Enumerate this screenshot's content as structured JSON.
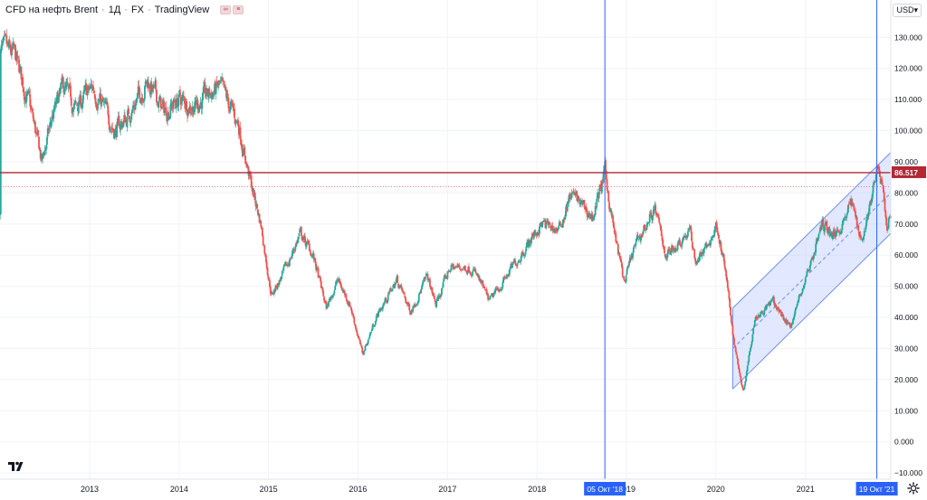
{
  "header": {
    "symbol": "CFD на нефть Brent",
    "interval": "1Д",
    "exchange": "FX",
    "source": "TradingView",
    "separator": "·"
  },
  "currency": "USD",
  "colors": {
    "up": "#26a69a",
    "down": "#ef5350",
    "level_line": "#b22833",
    "price_dotted": "#ef5350",
    "vline": "#2962ff",
    "channel_fill": "#c9d6ff",
    "channel_line": "#6e8ff0",
    "label_bg": "#2962ff"
  },
  "chart_data": {
    "type": "candlestick",
    "symbol": "CFD на нефть Brent",
    "interval": "1Д",
    "x_range": [
      "2012-01-01",
      "2021-12-15"
    ],
    "ylim": [
      -12,
      142
    ],
    "y_ticks": [
      130,
      120,
      110,
      100,
      90,
      80,
      70,
      60,
      50,
      40,
      30,
      20,
      10,
      0,
      -10
    ],
    "y_tick_labels": [
      "130.000",
      "120.000",
      "110.000",
      "100.000",
      "90.000",
      "80.000",
      "70.000",
      "60.000",
      "50.000",
      "40.000",
      "30.000",
      "20.000",
      "10.000",
      "0.000",
      "−10.000"
    ],
    "x_ticks": [
      "2013-01-01",
      "2014-01-01",
      "2015-01-01",
      "2016-01-01",
      "2017-01-01",
      "2018-01-01",
      "2019-01-01",
      "2020-01-01",
      "2021-01-01"
    ],
    "x_tick_labels": [
      "2013",
      "2014",
      "2015",
      "2016",
      "2017",
      "2018",
      "2019",
      "2020",
      "2021"
    ],
    "price_path": [
      [
        "2012-01-02",
        126
      ],
      [
        "2012-03-01",
        124
      ],
      [
        "2012-05-01",
        108
      ],
      [
        "2012-06-20",
        90
      ],
      [
        "2012-08-01",
        104
      ],
      [
        "2012-09-15",
        114
      ],
      [
        "2012-11-01",
        107
      ],
      [
        "2013-01-15",
        114
      ],
      [
        "2013-04-15",
        100
      ],
      [
        "2013-06-01",
        104
      ],
      [
        "2013-08-25",
        116
      ],
      [
        "2013-11-01",
        106
      ],
      [
        "2014-01-01",
        110
      ],
      [
        "2014-03-01",
        108
      ],
      [
        "2014-06-15",
        114
      ],
      [
        "2014-09-01",
        102
      ],
      [
        "2014-10-15",
        85
      ],
      [
        "2014-12-01",
        70
      ],
      [
        "2015-01-13",
        47
      ],
      [
        "2015-03-15",
        56
      ],
      [
        "2015-05-10",
        67
      ],
      [
        "2015-07-01",
        60
      ],
      [
        "2015-08-25",
        43
      ],
      [
        "2015-10-10",
        52
      ],
      [
        "2015-12-01",
        44
      ],
      [
        "2016-01-20",
        28
      ],
      [
        "2016-03-15",
        40
      ],
      [
        "2016-06-08",
        52
      ],
      [
        "2016-08-02",
        42
      ],
      [
        "2016-10-10",
        53
      ],
      [
        "2016-11-14",
        44
      ],
      [
        "2017-01-10",
        56
      ],
      [
        "2017-04-12",
        56
      ],
      [
        "2017-06-21",
        45
      ],
      [
        "2017-09-15",
        55
      ],
      [
        "2017-11-01",
        61
      ],
      [
        "2018-01-20",
        70
      ],
      [
        "2018-04-01",
        68
      ],
      [
        "2018-05-20",
        80
      ],
      [
        "2018-08-15",
        72
      ],
      [
        "2018-10-05",
        86.5
      ],
      [
        "2018-11-15",
        66
      ],
      [
        "2018-12-24",
        51
      ],
      [
        "2019-02-01",
        62
      ],
      [
        "2019-04-25",
        75
      ],
      [
        "2019-06-12",
        60
      ],
      [
        "2019-09-16",
        68
      ],
      [
        "2019-10-10",
        58
      ],
      [
        "2019-12-01",
        63
      ],
      [
        "2020-01-06",
        70
      ],
      [
        "2020-02-10",
        54
      ],
      [
        "2020-03-15",
        32
      ],
      [
        "2020-04-22",
        16
      ],
      [
        "2020-06-08",
        40
      ],
      [
        "2020-08-20",
        45
      ],
      [
        "2020-10-30",
        37
      ],
      [
        "2020-12-31",
        52
      ],
      [
        "2021-03-10",
        70
      ],
      [
        "2021-05-01",
        66
      ],
      [
        "2021-07-05",
        77
      ],
      [
        "2021-08-20",
        65
      ],
      [
        "2021-10-19",
        86
      ],
      [
        "2021-11-10",
        84
      ],
      [
        "2021-12-02",
        67
      ],
      [
        "2021-12-15",
        75
      ]
    ],
    "horizontal_level": 86.517,
    "horizontal_level_label": "86.517",
    "vertical_lines": [
      {
        "date": "2018-10-05",
        "label": "05 Окт '18"
      },
      {
        "date": "2021-10-19",
        "label": "19 Окт '21"
      }
    ],
    "regression_channel": {
      "start": {
        "date": "2020-03-10",
        "price": 30
      },
      "end": {
        "date": "2021-12-15",
        "price": 80
      },
      "upper_offset": 13,
      "lower_offset": 13
    },
    "grid": true
  }
}
